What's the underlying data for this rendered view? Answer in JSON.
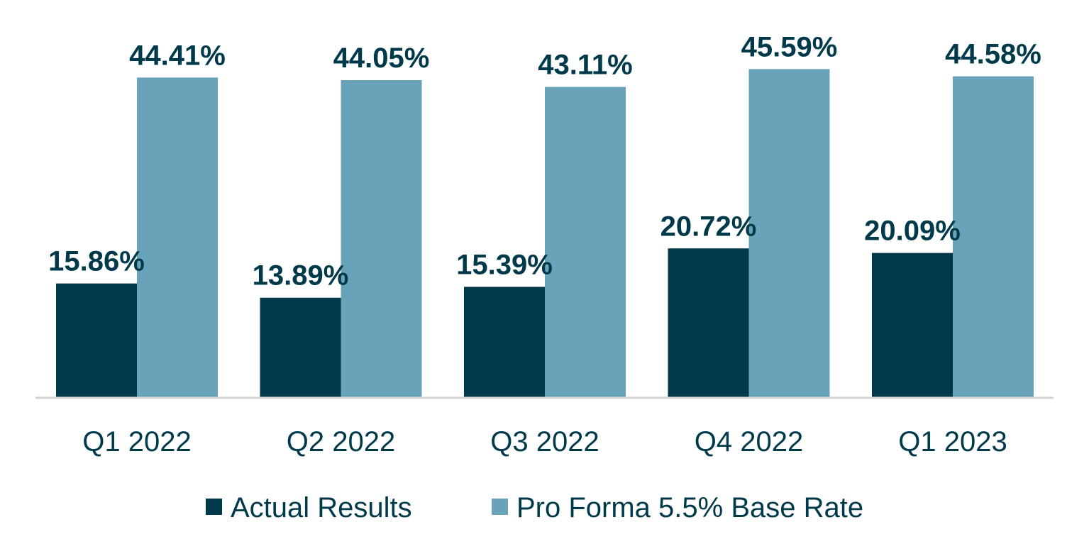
{
  "chart_data": {
    "type": "bar",
    "title": "",
    "xlabel": "",
    "ylabel": "",
    "ylim": [
      0,
      50
    ],
    "grid": false,
    "legend_position": "bottom",
    "categories": [
      "Q1 2022",
      "Q2 2022",
      "Q3 2022",
      "Q4 2022",
      "Q1 2023"
    ],
    "series": [
      {
        "name": "Actual Results",
        "color": "#003a4a",
        "values": [
          15.86,
          13.89,
          15.39,
          20.72,
          20.09
        ],
        "labels": [
          "15.86%",
          "13.89%",
          "15.39%",
          "20.72%",
          "20.09%"
        ]
      },
      {
        "name": "Pro Forma 5.5% Base Rate",
        "color": "#69a3b9",
        "values": [
          44.41,
          44.05,
          43.11,
          45.59,
          44.58
        ],
        "labels": [
          "44.41%",
          "44.05%",
          "43.11%",
          "45.59%",
          "44.58%"
        ]
      }
    ],
    "axis_color": "#d9d4cf"
  }
}
